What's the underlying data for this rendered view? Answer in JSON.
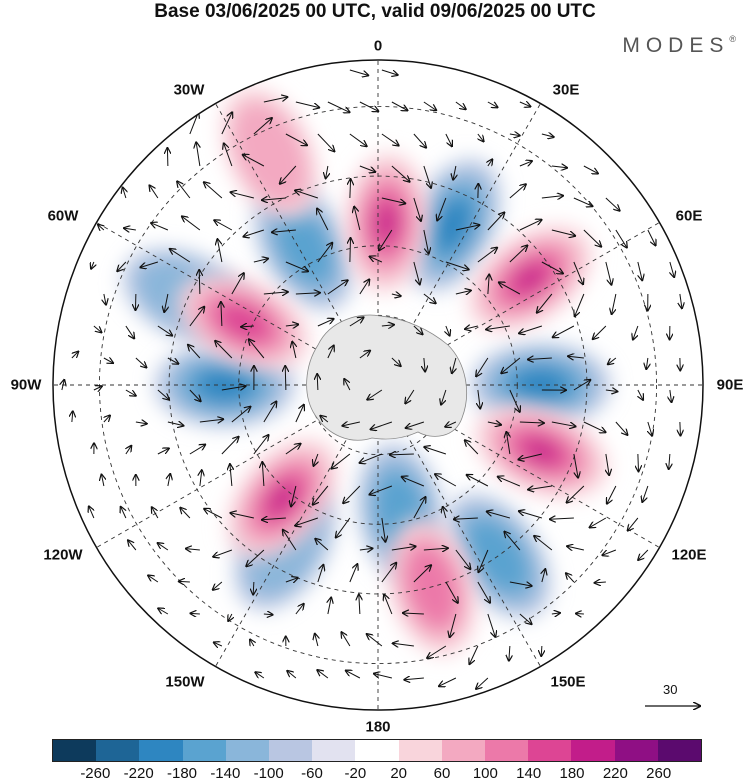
{
  "title": "Base 03/06/2025 00 UTC, valid 09/06/2025 00 UTC",
  "brand": "MODES",
  "brand_mark": "®",
  "projection": "south-polar-stereographic",
  "longitude_labels": {
    "top": "0",
    "bottom": "180",
    "left": "90W",
    "right": "90E",
    "w30": "30W",
    "w60": "60W",
    "w120": "120W",
    "w150": "150W",
    "e30": "30E",
    "e60": "60E",
    "e120": "120E",
    "e150": "150E"
  },
  "reference_vector": {
    "label": "30"
  },
  "colorbar": {
    "colors": [
      "#0d3a5c",
      "#1e6596",
      "#2e86c1",
      "#5aa3d0",
      "#8ab6da",
      "#b9c6e2",
      "#e2e2f0",
      "#ffffff",
      "#f9d5dc",
      "#f3a9c1",
      "#ec79a9",
      "#dd4594",
      "#c21d8a",
      "#8f0f84",
      "#5b0a6e"
    ],
    "ticks": [
      "-260",
      "-220",
      "-180",
      "-140",
      "-100",
      "-60",
      "-20",
      "20",
      "60",
      "100",
      "140",
      "180",
      "220",
      "260"
    ]
  },
  "anomaly_centers": [
    {
      "sign": "neg",
      "lon": 25,
      "lat": -52,
      "level": 3
    },
    {
      "sign": "neg",
      "lon": -28,
      "lat": -56,
      "level": 2
    },
    {
      "sign": "neg",
      "lon": -65,
      "lat": -45,
      "level": 1
    },
    {
      "sign": "neg",
      "lon": 90,
      "lat": -55,
      "level": 3
    },
    {
      "sign": "neg",
      "lon": -90,
      "lat": -57,
      "level": 3
    },
    {
      "sign": "neg",
      "lon": 170,
      "lat": -62,
      "level": 2
    },
    {
      "sign": "neg",
      "lon": 145,
      "lat": -45,
      "level": 2
    },
    {
      "sign": "neg",
      "lon": -150,
      "lat": -50,
      "level": 1
    },
    {
      "sign": "pos",
      "lon": 3,
      "lat": -55,
      "level": 4
    },
    {
      "sign": "pos",
      "lon": 55,
      "lat": -50,
      "level": 4
    },
    {
      "sign": "pos",
      "lon": -65,
      "lat": -58,
      "level": 3
    },
    {
      "sign": "pos",
      "lon": 112,
      "lat": -52,
      "level": 4
    },
    {
      "sign": "pos",
      "lon": -140,
      "lat": -58,
      "level": 4
    },
    {
      "sign": "pos",
      "lon": 165,
      "lat": -45,
      "level": 2
    },
    {
      "sign": "pos",
      "lon": -25,
      "lat": -35,
      "level": 1
    }
  ]
}
